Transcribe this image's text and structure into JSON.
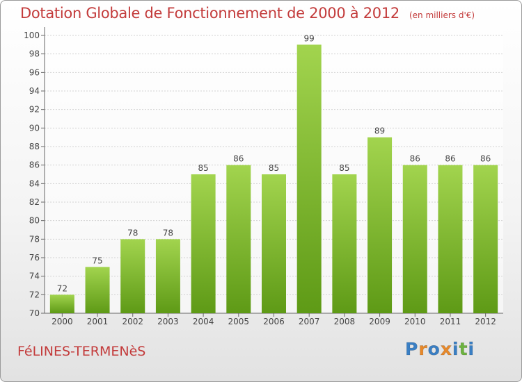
{
  "chart_data": {
    "type": "bar",
    "title": "Dotation Globale de Fonctionnement de 2000 à 2012",
    "subtitle": "(en milliers d'€)",
    "categories": [
      "2000",
      "2001",
      "2002",
      "2003",
      "2004",
      "2005",
      "2006",
      "2007",
      "2008",
      "2009",
      "2010",
      "2011",
      "2012"
    ],
    "values": [
      72,
      75,
      78,
      78,
      85,
      86,
      85,
      99,
      85,
      89,
      86,
      86,
      86
    ],
    "ylim": [
      70,
      100
    ],
    "yticks": [
      70,
      72,
      74,
      76,
      78,
      80,
      82,
      84,
      86,
      88,
      90,
      92,
      94,
      96,
      98,
      100
    ],
    "grid": true,
    "xlabel": "",
    "ylabel": "",
    "bar_color": "#7fbe2e"
  },
  "footer": {
    "commune": "FéLINES-TERMENèS",
    "logo_letters": [
      "P",
      "r",
      "o",
      "x",
      "i",
      "t",
      "i"
    ],
    "logo_colors": [
      "#3a7fc4",
      "#e8892a",
      "#3a7fc4",
      "#e8892a",
      "#3a7fc4",
      "#6db33f",
      "#3a7fc4"
    ]
  }
}
